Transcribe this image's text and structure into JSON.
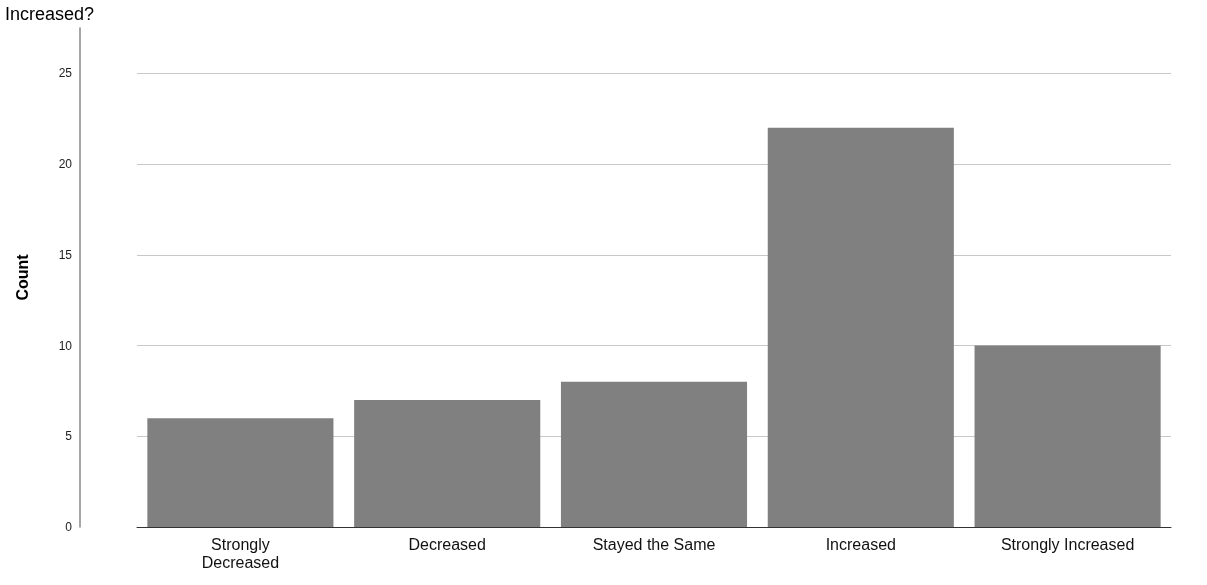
{
  "chart_data": {
    "type": "bar",
    "title": "Increased?",
    "ylabel": "Count",
    "categories": [
      "Strongly\nDecreased",
      "Decreased",
      "Stayed the Same",
      "Increased",
      "Strongly Increased"
    ],
    "values": [
      6,
      7,
      8,
      22,
      10
    ],
    "color": "#808080",
    "ylim": [
      0,
      27.5
    ],
    "yticks": [
      0,
      5,
      10,
      15,
      20,
      25
    ],
    "grid": "y"
  }
}
